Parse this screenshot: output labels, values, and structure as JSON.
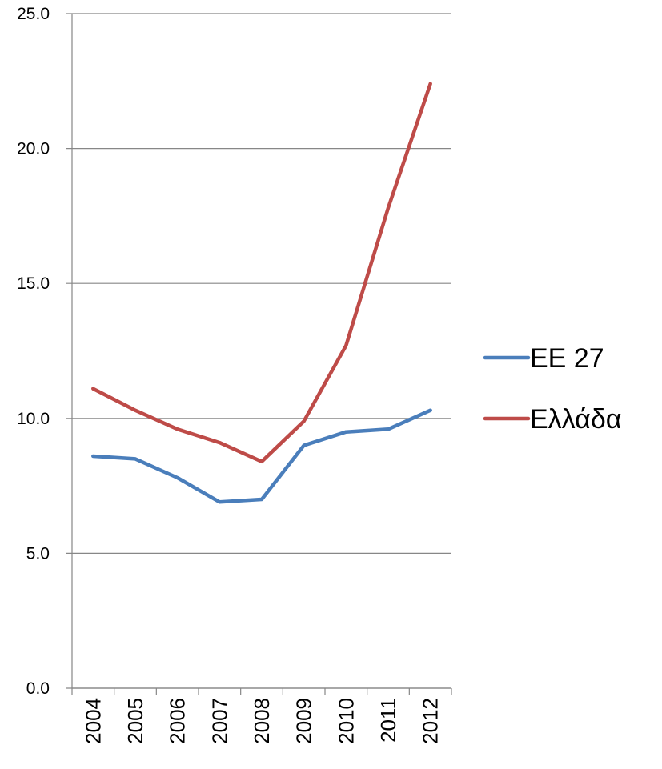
{
  "chart_data": {
    "type": "line",
    "categories": [
      "2004",
      "2005",
      "2006",
      "2007",
      "2008",
      "2009",
      "2010",
      "2011",
      "2012"
    ],
    "series": [
      {
        "name": "ΕΕ 27",
        "color": "#4a7ebb",
        "values": [
          8.6,
          8.5,
          7.8,
          6.9,
          7.0,
          9.0,
          9.5,
          9.6,
          10.3
        ]
      },
      {
        "name": "Ελλάδα",
        "color": "#be4b48",
        "values": [
          11.1,
          10.3,
          9.6,
          9.1,
          8.4,
          9.9,
          12.7,
          17.8,
          22.4
        ]
      }
    ],
    "ylim": [
      0,
      25
    ],
    "yticks": [
      "0.0",
      "5.0",
      "10.0",
      "15.0",
      "20.0",
      "25.0"
    ],
    "grid": true,
    "legend_position": "right"
  }
}
